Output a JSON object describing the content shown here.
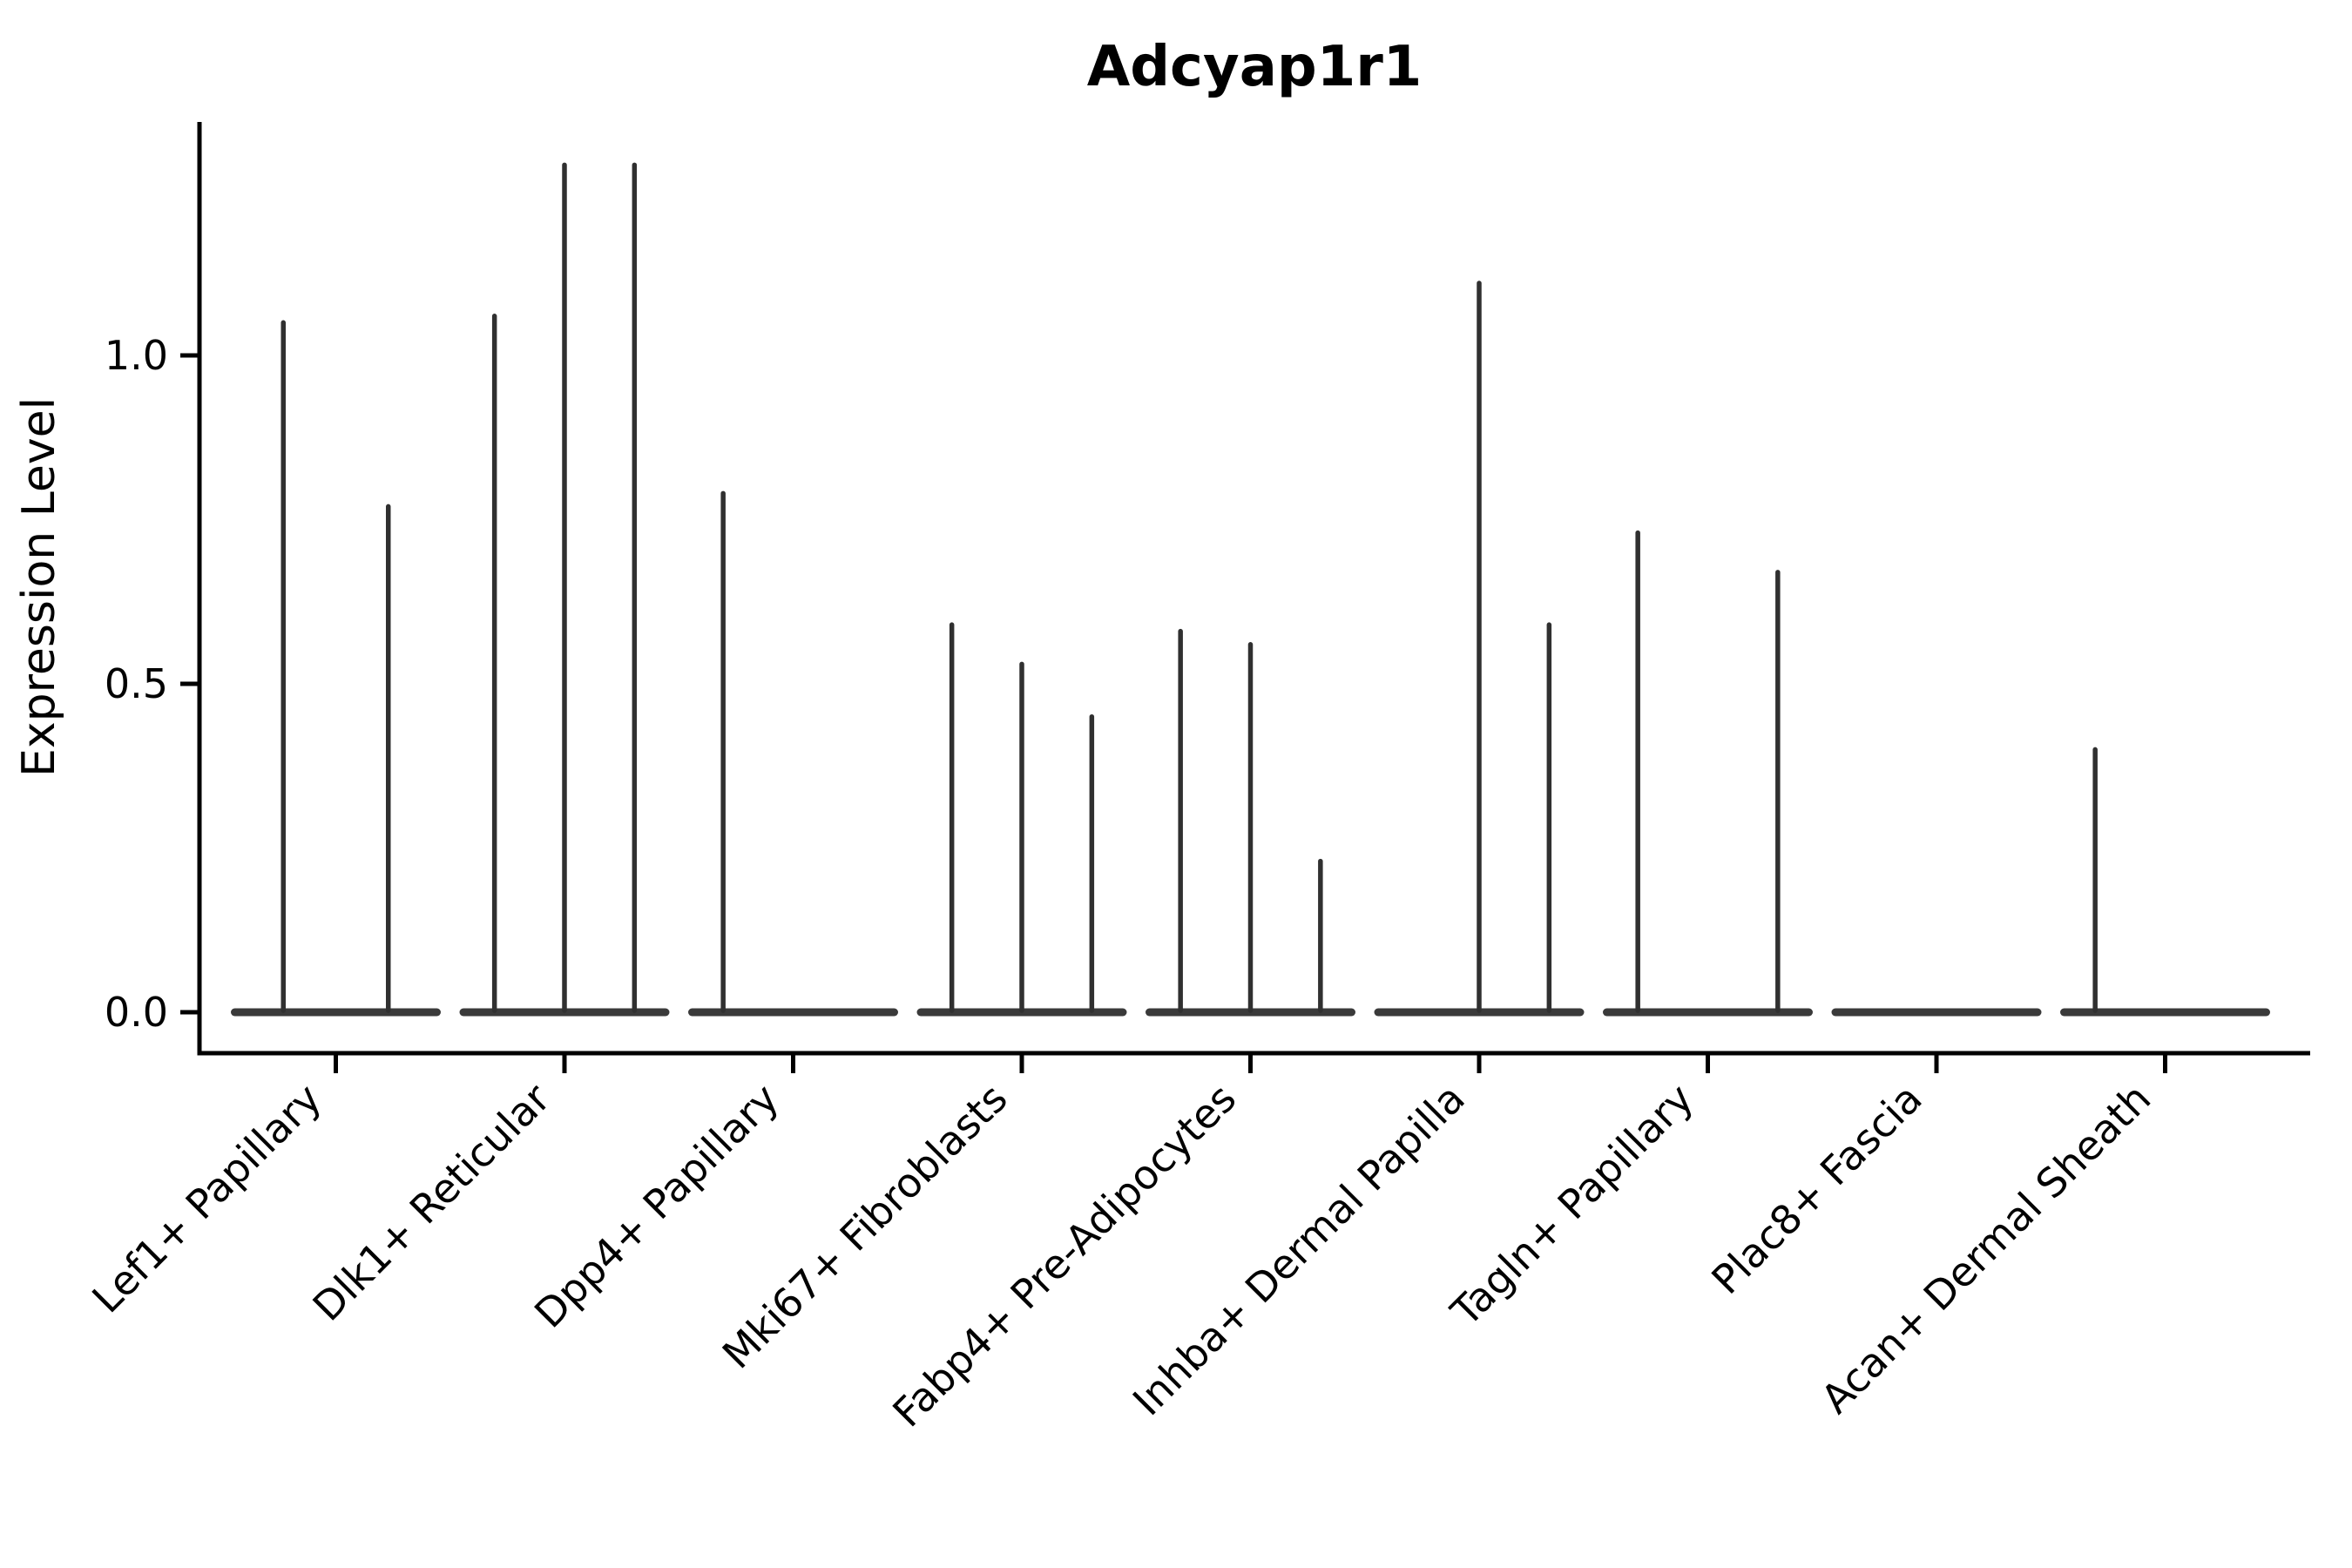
{
  "title": "Adcyap1r1",
  "y_axis": {
    "label": "Expression Level",
    "tick_labels": [
      "0.0",
      "0.5",
      "1.0"
    ]
  },
  "x_axis": {
    "label": "",
    "tick_labels": [
      "Lef1+ Papillary",
      "Dlk1+ Reticular",
      "Dpp4+ Papillary",
      "Mki67+ Fibroblasts",
      "Fabp4+ Pre-Adipocytes",
      "Inhba+ Dermal Papilla",
      "Tagln+ Papillary",
      "Plac8+ Fascia",
      "Acan+ Dermal Sheath"
    ]
  },
  "colors": {
    "background": "#ffffff",
    "axis": "#000000",
    "violin_ink": "#303030",
    "violin_base": "#3a3a3a"
  },
  "chart_data": {
    "type": "violin",
    "title": "Adcyap1r1",
    "xlabel": "",
    "ylabel": "Expression Level",
    "ylim": [
      0,
      1.36
    ],
    "yticks": [
      0.0,
      0.5,
      1.0
    ],
    "grid": false,
    "legend": "none",
    "style_note": "Expression violins are collapsed flat at 0 (most cells zero) with a thin vertical spike up to each violin's maximum value; violins within a category sit side by side on one flat base.",
    "categories": [
      "Lef1+ Papillary",
      "Dlk1+ Reticular",
      "Dpp4+ Papillary",
      "Mki67+ Fibroblasts",
      "Fabp4+ Pre-Adipocytes",
      "Inhba+ Dermal Papilla",
      "Tagln+ Papillary",
      "Plac8+ Fascia",
      "Acan+ Dermal Sheath"
    ],
    "series": [
      {
        "category": "Lef1+ Papillary",
        "n_violins": 2,
        "violin_max": [
          1.05,
          0.77
        ]
      },
      {
        "category": "Dlk1+ Reticular",
        "n_violins": 3,
        "violin_max": [
          1.06,
          1.29,
          1.29
        ]
      },
      {
        "category": "Dpp4+ Papillary",
        "n_violins": 3,
        "violin_max": [
          0.79,
          0,
          0
        ]
      },
      {
        "category": "Mki67+ Fibroblasts",
        "n_violins": 3,
        "violin_max": [
          0.59,
          0.53,
          0.45
        ]
      },
      {
        "category": "Fabp4+ Pre-Adipocytes",
        "n_violins": 3,
        "violin_max": [
          0.58,
          0.56,
          0.23
        ]
      },
      {
        "category": "Inhba+ Dermal Papilla",
        "n_violins": 3,
        "violin_max": [
          0,
          1.11,
          0.59
        ]
      },
      {
        "category": "Tagln+ Papillary",
        "n_violins": 3,
        "violin_max": [
          0.73,
          0,
          0.67
        ]
      },
      {
        "category": "Plac8+ Fascia",
        "n_violins": 3,
        "violin_max": [
          0,
          0,
          0
        ]
      },
      {
        "category": "Acan+ Dermal Sheath",
        "n_violins": 3,
        "violin_max": [
          0.4,
          0,
          0
        ]
      }
    ]
  }
}
